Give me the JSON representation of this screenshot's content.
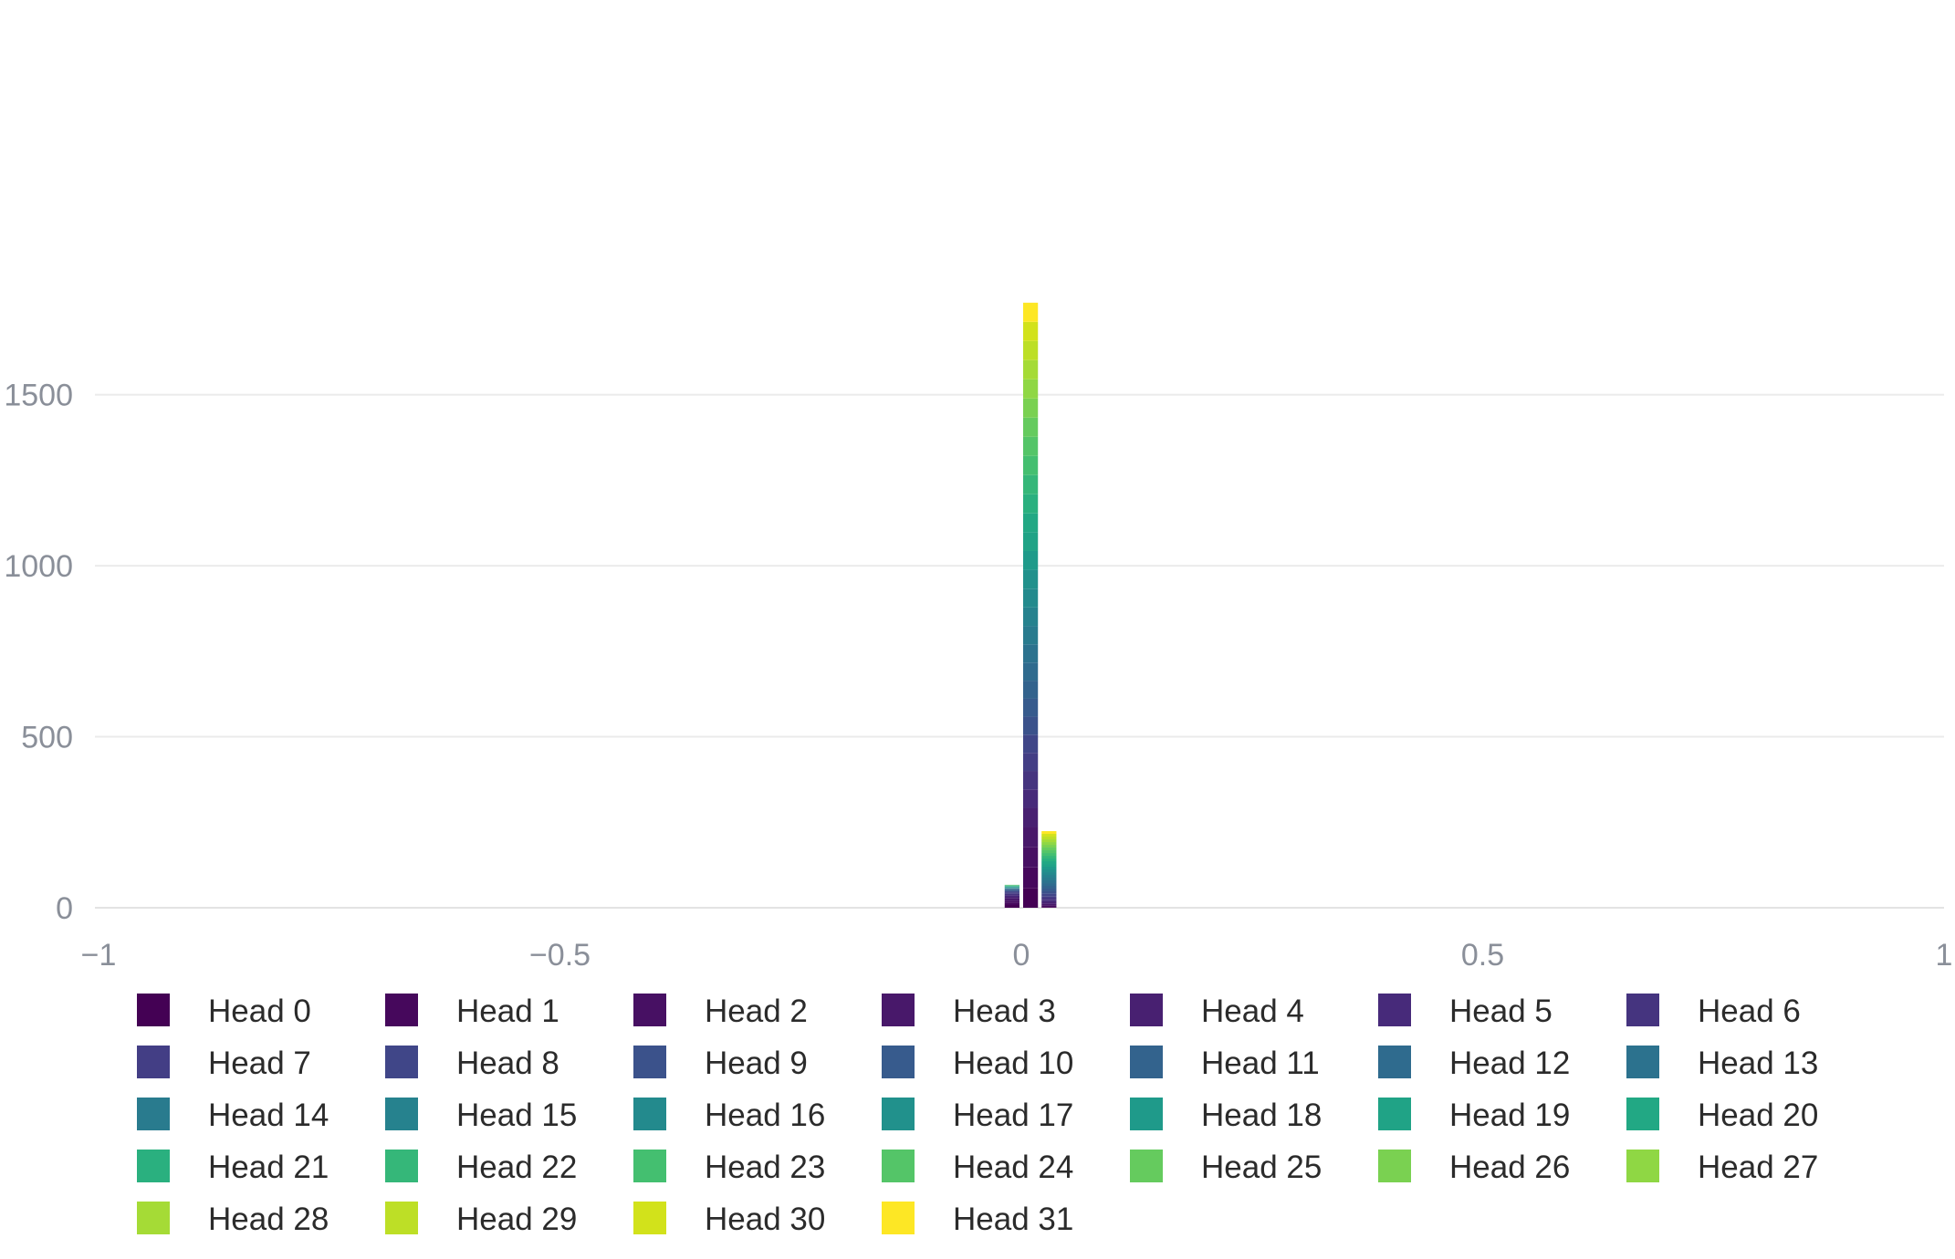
{
  "chart_data": {
    "type": "bar",
    "stacked": true,
    "title": "",
    "xlabel": "",
    "ylabel": "",
    "xlim": [
      -1,
      1
    ],
    "ylim": [
      0,
      1780
    ],
    "x_ticks": [
      "−1",
      "−0.5",
      "0",
      "0.5",
      "1"
    ],
    "x_tick_values": [
      -1,
      -0.5,
      0,
      0.5,
      1
    ],
    "y_ticks": [
      "0",
      "500",
      "1000",
      "1500"
    ],
    "y_tick_values": [
      0,
      500,
      1000,
      1500
    ],
    "grid": true,
    "legend_position": "bottom",
    "bins": [
      {
        "x0": -0.02,
        "x1": 0.0
      },
      {
        "x0": 0.0,
        "x1": 0.02
      },
      {
        "x0": 0.02,
        "x1": 0.04
      }
    ],
    "series": [
      {
        "name": "Head 0",
        "color": "#440154",
        "values": [
          8,
          58,
          2
        ]
      },
      {
        "name": "Head 1",
        "color": "#46085c",
        "values": [
          7,
          60,
          2
        ]
      },
      {
        "name": "Head 2",
        "color": "#471063",
        "values": [
          6,
          60,
          3
        ]
      },
      {
        "name": "Head 3",
        "color": "#48186a",
        "values": [
          6,
          58,
          4
        ]
      },
      {
        "name": "Head 4",
        "color": "#482071",
        "values": [
          5,
          56,
          5
        ]
      },
      {
        "name": "Head 5",
        "color": "#472a7a",
        "values": [
          5,
          54,
          6
        ]
      },
      {
        "name": "Head 6",
        "color": "#45347f",
        "values": [
          4,
          54,
          6
        ]
      },
      {
        "name": "Head 7",
        "color": "#433e85",
        "values": [
          4,
          53,
          6
        ]
      },
      {
        "name": "Head 8",
        "color": "#404688",
        "values": [
          3,
          53,
          7
        ]
      },
      {
        "name": "Head 9",
        "color": "#3b528b",
        "values": [
          2,
          53,
          7
        ]
      },
      {
        "name": "Head 10",
        "color": "#375b8d",
        "values": [
          2,
          53,
          8
        ]
      },
      {
        "name": "Head 11",
        "color": "#33638d",
        "values": [
          2,
          52,
          8
        ]
      },
      {
        "name": "Head 12",
        "color": "#2f6b8e",
        "values": [
          1,
          53,
          8
        ]
      },
      {
        "name": "Head 13",
        "color": "#2c728e",
        "values": [
          1,
          53,
          8
        ]
      },
      {
        "name": "Head 14",
        "color": "#297b8e",
        "values": [
          1,
          54,
          8
        ]
      },
      {
        "name": "Head 15",
        "color": "#26828e",
        "values": [
          1,
          54,
          8
        ]
      },
      {
        "name": "Head 16",
        "color": "#238a8d",
        "values": [
          1,
          55,
          8
        ]
      },
      {
        "name": "Head 17",
        "color": "#21918c",
        "values": [
          1,
          55,
          8
        ]
      },
      {
        "name": "Head 18",
        "color": "#1f9a8a",
        "values": [
          1,
          55,
          8
        ]
      },
      {
        "name": "Head 19",
        "color": "#20a386",
        "values": [
          1,
          55,
          8
        ]
      },
      {
        "name": "Head 20",
        "color": "#22a884",
        "values": [
          1,
          55,
          8
        ]
      },
      {
        "name": "Head 21",
        "color": "#2ab07f",
        "values": [
          1,
          56,
          8
        ]
      },
      {
        "name": "Head 22",
        "color": "#35b779",
        "values": [
          1,
          56,
          8
        ]
      },
      {
        "name": "Head 23",
        "color": "#44bf70",
        "values": [
          1,
          56,
          8
        ]
      },
      {
        "name": "Head 24",
        "color": "#54c568",
        "values": [
          1,
          56,
          8
        ]
      },
      {
        "name": "Head 25",
        "color": "#65cb5e",
        "values": [
          0,
          56,
          8
        ]
      },
      {
        "name": "Head 26",
        "color": "#7ad151",
        "values": [
          0,
          56,
          8
        ]
      },
      {
        "name": "Head 27",
        "color": "#8fd744",
        "values": [
          0,
          56,
          8
        ]
      },
      {
        "name": "Head 28",
        "color": "#a5db36",
        "values": [
          0,
          56,
          8
        ]
      },
      {
        "name": "Head 29",
        "color": "#bddf26",
        "values": [
          0,
          56,
          8
        ]
      },
      {
        "name": "Head 30",
        "color": "#d2e21b",
        "values": [
          0,
          56,
          8
        ]
      },
      {
        "name": "Head 31",
        "color": "#fde725",
        "values": [
          0,
          56,
          8
        ]
      }
    ]
  }
}
